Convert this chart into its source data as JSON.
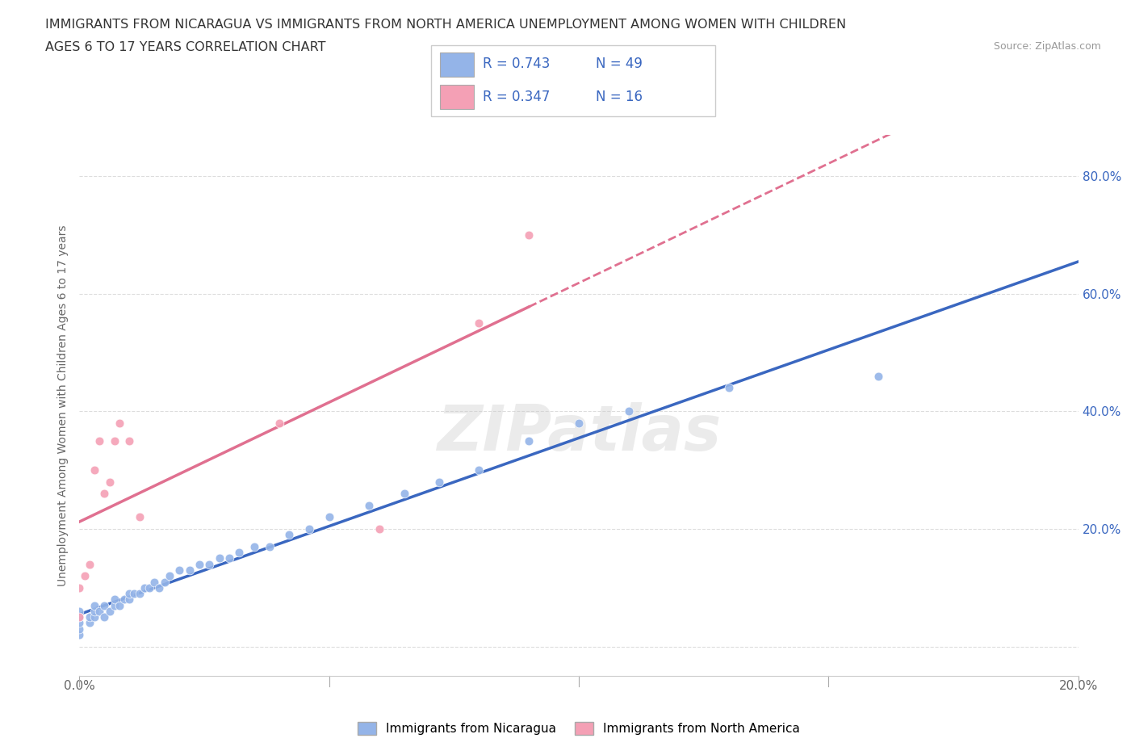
{
  "title_line1": "IMMIGRANTS FROM NICARAGUA VS IMMIGRANTS FROM NORTH AMERICA UNEMPLOYMENT AMONG WOMEN WITH CHILDREN",
  "title_line2": "AGES 6 TO 17 YEARS CORRELATION CHART",
  "source_text": "Source: ZipAtlas.com",
  "ylabel": "Unemployment Among Women with Children Ages 6 to 17 years",
  "xlim": [
    0.0,
    0.2
  ],
  "ylim": [
    -0.05,
    0.87
  ],
  "xticks": [
    0.0,
    0.05,
    0.1,
    0.15,
    0.2
  ],
  "yticks": [
    0.0,
    0.2,
    0.4,
    0.6,
    0.8
  ],
  "ytick_labels_right": [
    "",
    "20.0%",
    "40.0%",
    "60.0%",
    "80.0%"
  ],
  "blue_color": "#94B4E8",
  "pink_color": "#F4A0B5",
  "blue_line_color": "#3A67C0",
  "pink_line_color": "#E07090",
  "R_blue": 0.743,
  "N_blue": 49,
  "R_pink": 0.347,
  "N_pink": 16,
  "legend_label_blue": "Immigrants from Nicaragua",
  "legend_label_pink": "Immigrants from North America",
  "nicaragua_x": [
    0.0,
    0.0,
    0.0,
    0.0,
    0.0,
    0.002,
    0.002,
    0.003,
    0.003,
    0.003,
    0.004,
    0.005,
    0.005,
    0.006,
    0.007,
    0.007,
    0.008,
    0.009,
    0.01,
    0.01,
    0.011,
    0.012,
    0.013,
    0.014,
    0.015,
    0.016,
    0.017,
    0.018,
    0.02,
    0.022,
    0.024,
    0.026,
    0.028,
    0.03,
    0.032,
    0.035,
    0.038,
    0.042,
    0.046,
    0.05,
    0.058,
    0.065,
    0.072,
    0.08,
    0.09,
    0.1,
    0.11,
    0.13,
    0.16
  ],
  "nicaragua_y": [
    0.02,
    0.03,
    0.04,
    0.05,
    0.06,
    0.04,
    0.05,
    0.05,
    0.06,
    0.07,
    0.06,
    0.05,
    0.07,
    0.06,
    0.07,
    0.08,
    0.07,
    0.08,
    0.08,
    0.09,
    0.09,
    0.09,
    0.1,
    0.1,
    0.11,
    0.1,
    0.11,
    0.12,
    0.13,
    0.13,
    0.14,
    0.14,
    0.15,
    0.15,
    0.16,
    0.17,
    0.17,
    0.19,
    0.2,
    0.22,
    0.24,
    0.26,
    0.28,
    0.3,
    0.35,
    0.38,
    0.4,
    0.44,
    0.46
  ],
  "north_america_x": [
    0.0,
    0.0,
    0.001,
    0.002,
    0.003,
    0.004,
    0.005,
    0.006,
    0.007,
    0.008,
    0.01,
    0.012,
    0.04,
    0.06,
    0.08,
    0.09
  ],
  "north_america_y": [
    0.05,
    0.1,
    0.12,
    0.14,
    0.3,
    0.35,
    0.26,
    0.28,
    0.35,
    0.38,
    0.35,
    0.22,
    0.38,
    0.2,
    0.55,
    0.7
  ],
  "grid_color": "#DDDDDD",
  "background_color": "#FFFFFF",
  "title_color": "#333333",
  "axis_color": "#666666",
  "stat_color": "#3A67C0"
}
